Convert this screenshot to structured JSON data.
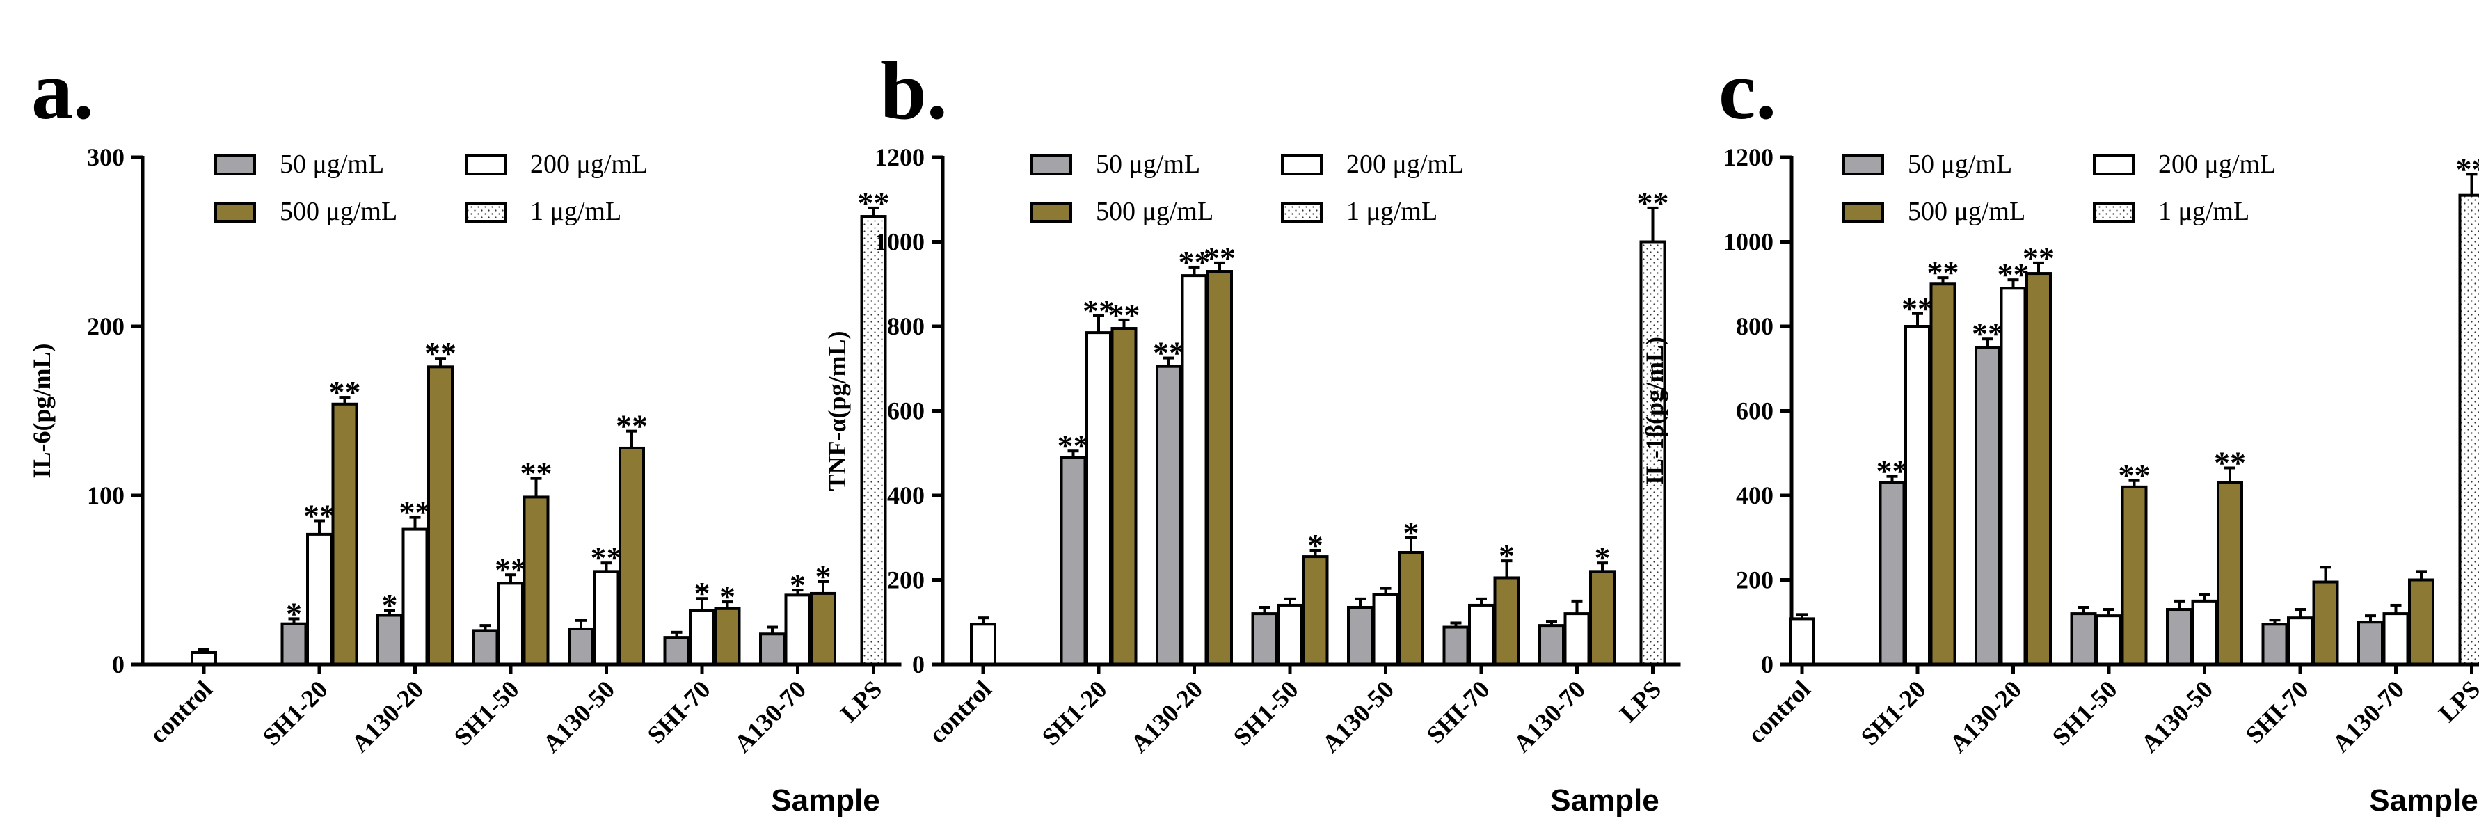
{
  "chart_data": [
    {
      "panel_label": "a.",
      "type": "bar",
      "ylabel": "IL-6(pg/mL)",
      "xlabel": "Sample",
      "ylim": [
        0,
        300
      ],
      "yticks": [
        0,
        100,
        200,
        300
      ],
      "categories": [
        "control",
        "SH1-20",
        "A130-20",
        "SH1-50",
        "A130-50",
        "SHI-70",
        "A130-70",
        "LPS"
      ],
      "series": [
        {
          "name": "50 μg/mL",
          "key": "c50",
          "values": [
            null,
            24,
            29,
            20,
            21,
            16,
            18,
            null
          ],
          "errors": [
            null,
            3,
            3,
            3,
            5,
            3,
            4,
            null
          ],
          "sig": [
            "",
            "*",
            "*",
            "",
            "",
            "",
            "",
            ""
          ]
        },
        {
          "name": "200 μg/mL",
          "key": "c200",
          "values": [
            7,
            77,
            80,
            48,
            55,
            32,
            41,
            null
          ],
          "errors": [
            2,
            8,
            7,
            5,
            5,
            7,
            3,
            null
          ],
          "sig": [
            "",
            "**",
            "**",
            "**",
            "**",
            "*",
            "*",
            ""
          ]
        },
        {
          "name": "500 μg/mL",
          "key": "c500",
          "values": [
            null,
            154,
            176,
            99,
            128,
            33,
            42,
            null
          ],
          "errors": [
            null,
            4,
            5,
            11,
            10,
            4,
            7,
            null
          ],
          "sig": [
            "",
            "**",
            "**",
            "**",
            "**",
            "*",
            "*",
            ""
          ]
        },
        {
          "name": "1 μg/mL",
          "key": "lps",
          "values": [
            null,
            null,
            null,
            null,
            null,
            null,
            null,
            265
          ],
          "errors": [
            null,
            null,
            null,
            null,
            null,
            null,
            null,
            5
          ],
          "sig": [
            "",
            "",
            "",
            "",
            "",
            "",
            "",
            "**"
          ]
        }
      ]
    },
    {
      "panel_label": "b.",
      "type": "bar",
      "ylabel": "TNF-α(pg/mL)",
      "xlabel": "Sample",
      "ylim": [
        0,
        1200
      ],
      "yticks": [
        0,
        200,
        400,
        600,
        800,
        1000,
        1200
      ],
      "categories": [
        "control",
        "SH1-20",
        "A130-20",
        "SH1-50",
        "A130-50",
        "SHI-70",
        "A130-70",
        "LPS"
      ],
      "series": [
        {
          "name": "50 μg/mL",
          "key": "c50",
          "values": [
            null,
            490,
            705,
            120,
            135,
            88,
            92,
            null
          ],
          "errors": [
            null,
            15,
            20,
            15,
            20,
            10,
            10,
            null
          ],
          "sig": [
            "",
            "**",
            "**",
            "",
            "",
            "",
            "",
            ""
          ]
        },
        {
          "name": "200 μg/mL",
          "key": "c200",
          "values": [
            95,
            785,
            920,
            140,
            165,
            140,
            120,
            null
          ],
          "errors": [
            15,
            40,
            20,
            15,
            15,
            15,
            30,
            null
          ],
          "sig": [
            "",
            "**",
            "**",
            "",
            "",
            "",
            "",
            ""
          ]
        },
        {
          "name": "500 μg/mL",
          "key": "c500",
          "values": [
            null,
            795,
            930,
            255,
            265,
            205,
            220,
            null
          ],
          "errors": [
            null,
            20,
            20,
            15,
            35,
            40,
            20,
            null
          ],
          "sig": [
            "",
            "**",
            "**",
            "*",
            "*",
            "*",
            "*",
            ""
          ]
        },
        {
          "name": "1 μg/mL",
          "key": "lps",
          "values": [
            null,
            null,
            null,
            null,
            null,
            null,
            null,
            1000
          ],
          "errors": [
            null,
            null,
            null,
            null,
            null,
            null,
            null,
            80
          ],
          "sig": [
            "",
            "",
            "",
            "",
            "",
            "",
            "",
            "**"
          ]
        }
      ]
    },
    {
      "panel_label": "c.",
      "type": "bar",
      "ylabel": "IL-1β(pg/mL)",
      "xlabel": "Sample",
      "ylim": [
        0,
        1200
      ],
      "yticks": [
        0,
        200,
        400,
        600,
        800,
        1000,
        1200
      ],
      "categories": [
        "control",
        "SH1-20",
        "A130-20",
        "SH1-50",
        "A130-50",
        "SHI-70",
        "A130-70",
        "LPS"
      ],
      "series": [
        {
          "name": "50 μg/mL",
          "key": "c50",
          "values": [
            null,
            430,
            750,
            120,
            130,
            95,
            100,
            null
          ],
          "errors": [
            null,
            15,
            20,
            15,
            20,
            10,
            15,
            null
          ],
          "sig": [
            "",
            "**",
            "**",
            "",
            "",
            "",
            "",
            ""
          ]
        },
        {
          "name": "200 μg/mL",
          "key": "c200",
          "values": [
            108,
            800,
            890,
            115,
            150,
            110,
            120,
            null
          ],
          "errors": [
            10,
            30,
            20,
            15,
            15,
            20,
            20,
            null
          ],
          "sig": [
            "",
            "**",
            "**",
            "",
            "",
            "",
            "",
            ""
          ]
        },
        {
          "name": "500 μg/mL",
          "key": "c500",
          "values": [
            null,
            900,
            925,
            420,
            430,
            195,
            200,
            null
          ],
          "errors": [
            null,
            15,
            25,
            15,
            35,
            35,
            20,
            null
          ],
          "sig": [
            "",
            "**",
            "**",
            "**",
            "**",
            "",
            "",
            ""
          ]
        },
        {
          "name": "1 μg/mL",
          "key": "lps",
          "values": [
            null,
            null,
            null,
            null,
            null,
            null,
            null,
            1110
          ],
          "errors": [
            null,
            null,
            null,
            null,
            null,
            null,
            null,
            50
          ],
          "sig": [
            "",
            "",
            "",
            "",
            "",
            "",
            "",
            "**"
          ]
        }
      ]
    }
  ],
  "colors": {
    "c50": "#a4a4a8",
    "c200": "#ffffff",
    "c500": "#8c7a34",
    "lps": "#ffffff",
    "axis": "#000000"
  }
}
